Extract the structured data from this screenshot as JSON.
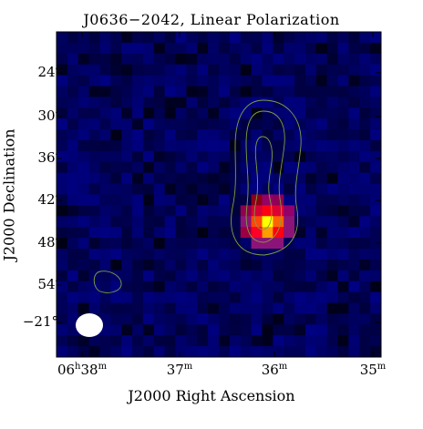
{
  "title": "J0636−2042, Linear Polarization",
  "xlabel": "J2000 Right Ascension",
  "ylabel": "J2000 Declination",
  "yticks": [
    "24′",
    "30′",
    "36′",
    "42′",
    "48′",
    "54′",
    "−21°"
  ],
  "xticks": [
    {
      "main": "06",
      "sup1": "h",
      "mid": "38",
      "sup2": "m"
    },
    {
      "main": "",
      "sup1": "",
      "mid": "37",
      "sup2": "m"
    },
    {
      "main": "",
      "sup1": "",
      "mid": "36",
      "sup2": "m"
    },
    {
      "main": "",
      "sup1": "",
      "mid": "35",
      "sup2": "m"
    }
  ],
  "colors": {
    "background_noise": "#0a0a5a",
    "source_peak": "#ffff40",
    "source_mid": "#ff2000",
    "contour": "#7fa040",
    "beam": "#ffffff"
  }
}
